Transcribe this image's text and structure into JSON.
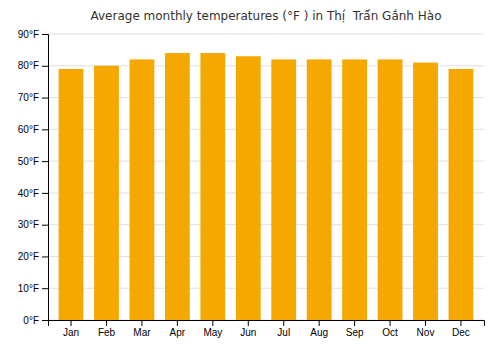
{
  "chart_data": {
    "type": "bar",
    "title": "Average monthly temperatures (°F ) in Thị́  Trấ́n Gắnh Hào",
    "categories": [
      "Jan",
      "Feb",
      "Mar",
      "Apr",
      "May",
      "Jun",
      "Jul",
      "Aug",
      "Sep",
      "Oct",
      "Nov",
      "Dec"
    ],
    "values": [
      79,
      80,
      82,
      84,
      84,
      83,
      82,
      82,
      82,
      82,
      81,
      79
    ],
    "color": "#F5A800",
    "ylim": [
      0,
      90
    ],
    "yticks": [
      {
        "value": 0,
        "label": "0°F"
      },
      {
        "value": 10,
        "label": "10°F"
      },
      {
        "value": 20,
        "label": "20°F"
      },
      {
        "value": 30,
        "label": "30°F"
      },
      {
        "value": 40,
        "label": "40°F"
      },
      {
        "value": 50,
        "label": "50°F"
      },
      {
        "value": 60,
        "label": "60°F"
      },
      {
        "value": 70,
        "label": "70°F"
      },
      {
        "value": 80,
        "label": "80°F"
      },
      {
        "value": 90,
        "label": "90°F"
      }
    ],
    "grid": true
  }
}
